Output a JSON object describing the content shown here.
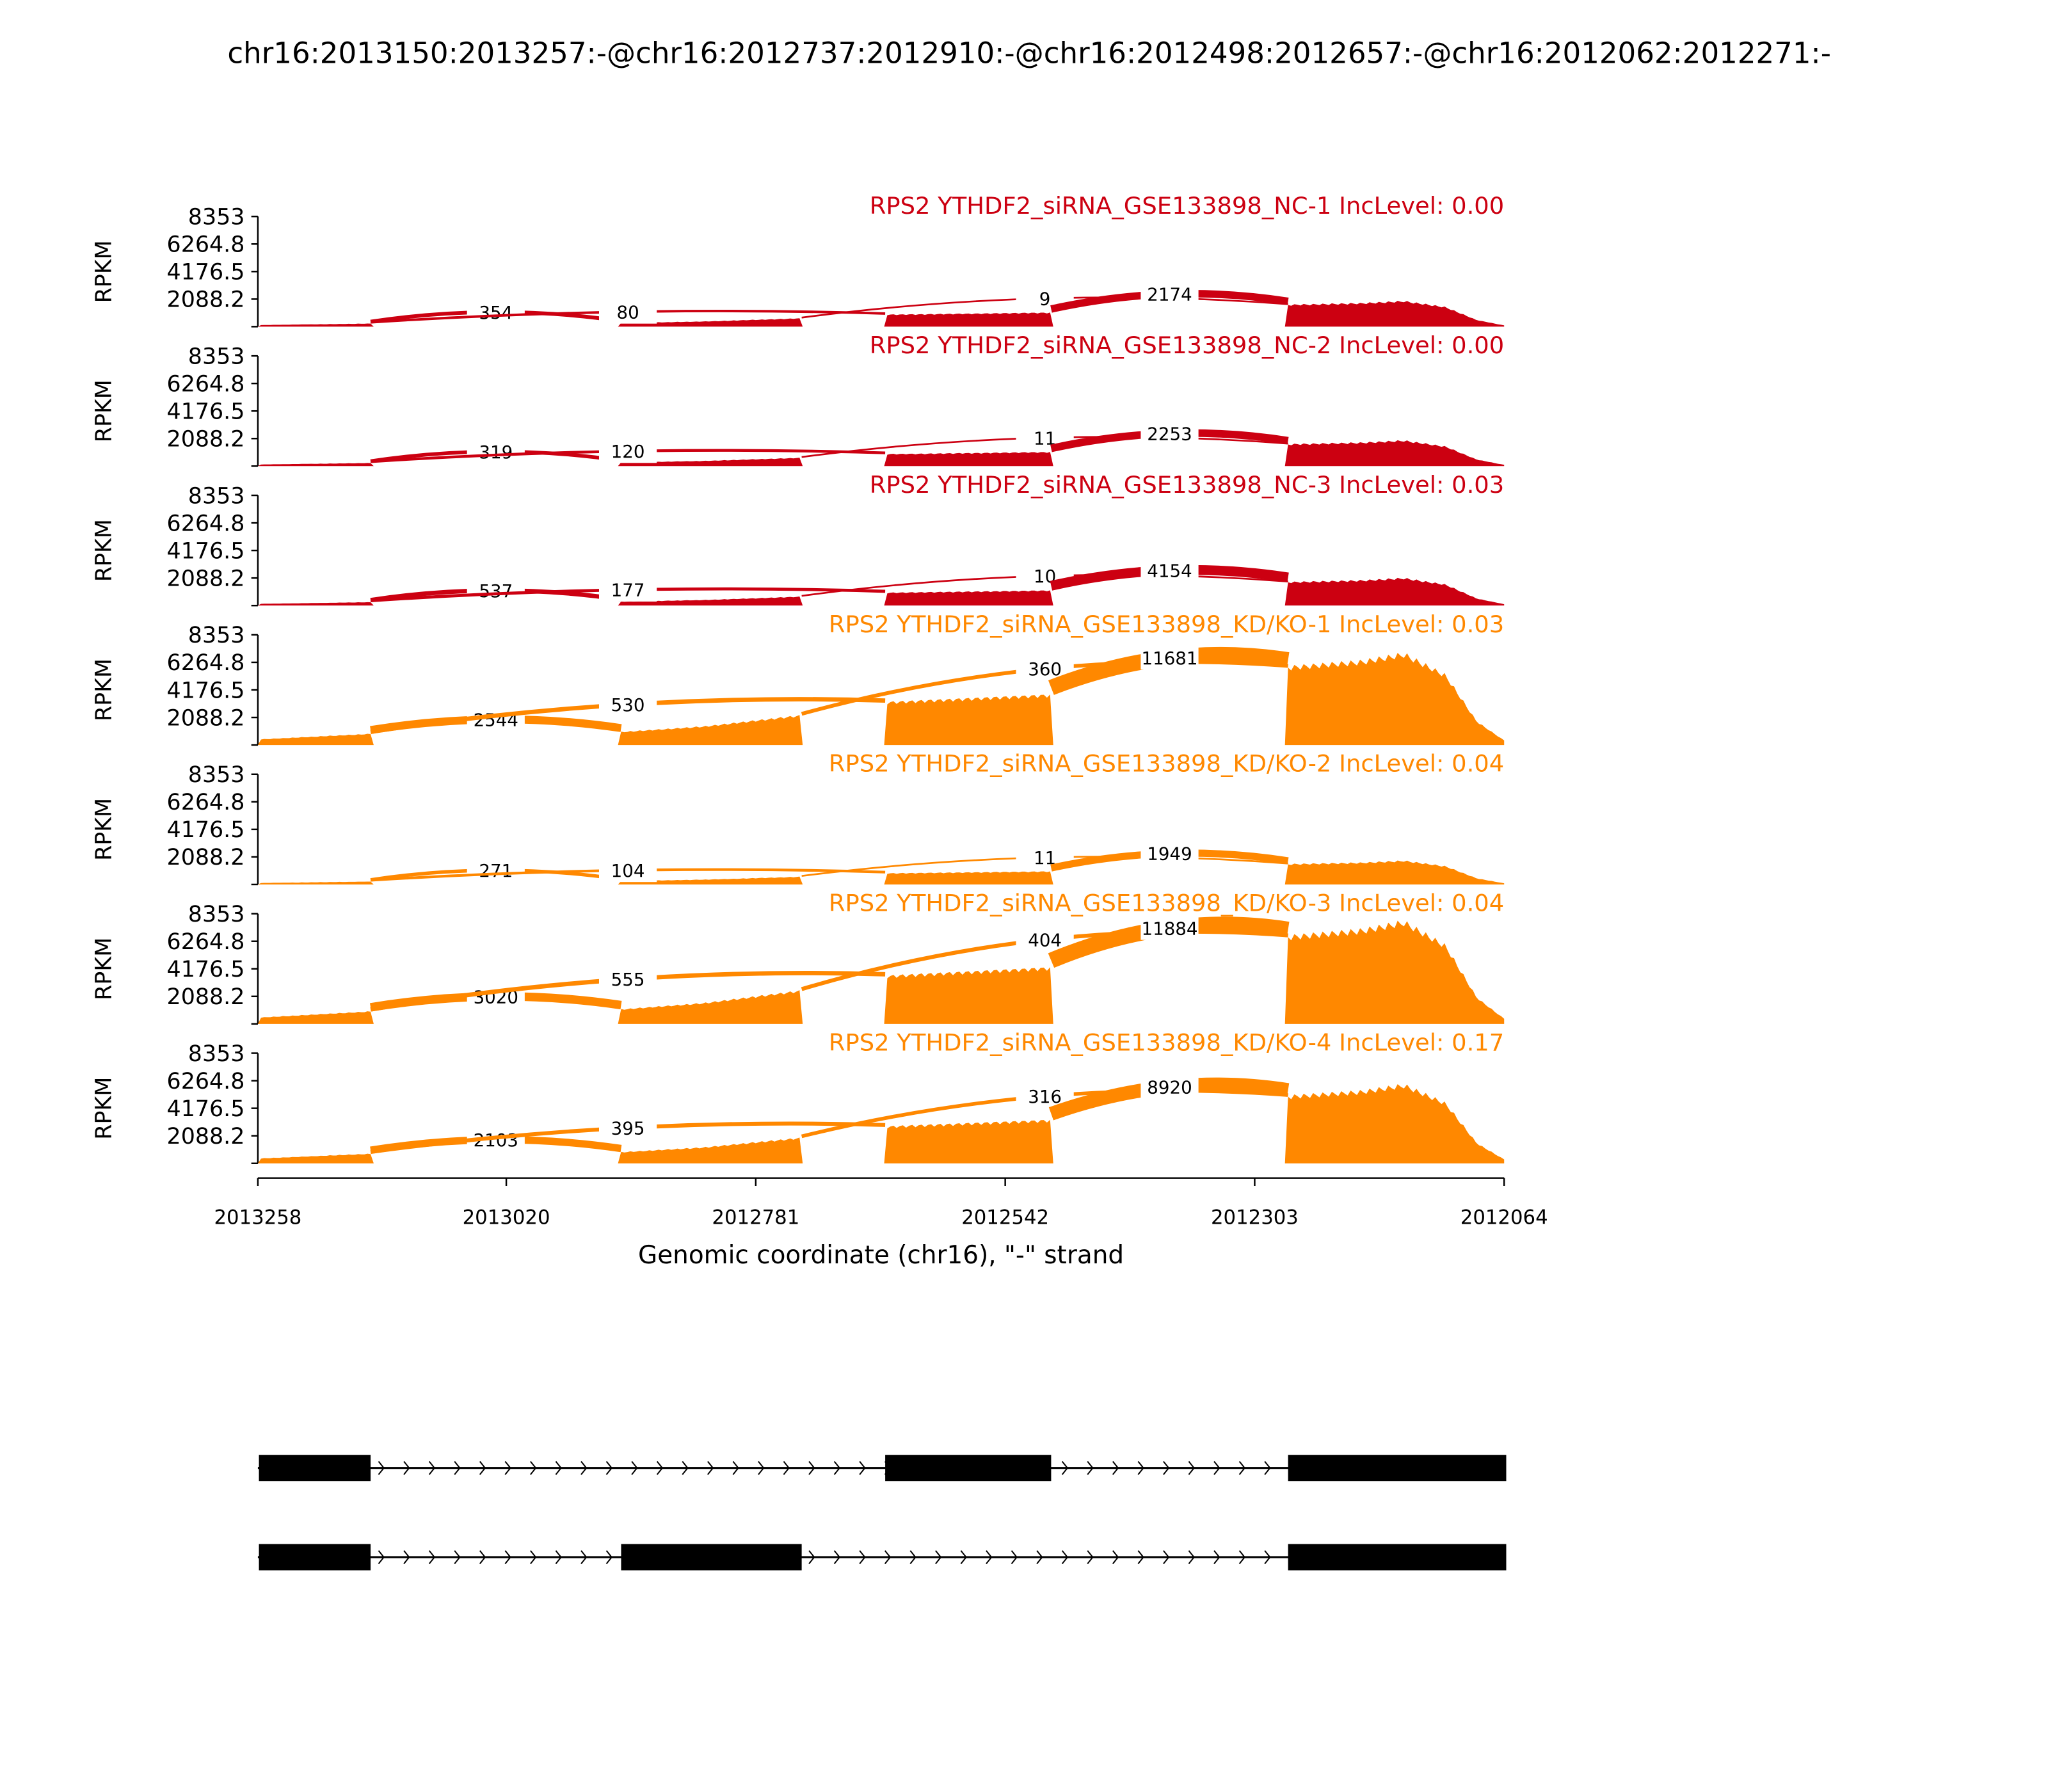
{
  "title": "chr16:2013150:2013257:-@chr16:2012737:2012910:-@chr16:2012498:2012657:-@chr16:2012062:2012271:-",
  "chart_data": {
    "type": "area",
    "subtype": "sashimi",
    "xlabel": "Genomic coordinate (chr16), \"-\" strand",
    "ylabel": "RPKM",
    "xlim": [
      2013258,
      2012064
    ],
    "xticks": [
      "2013258",
      "2013020",
      "2012781",
      "2012542",
      "2012303",
      "2012064"
    ],
    "xtick_values": [
      2013258,
      2013020,
      2012781,
      2012542,
      2012303,
      2012064
    ],
    "ylim": [
      0,
      8353
    ],
    "yticks": [
      "2088.2",
      "4176.5",
      "6264.8",
      "8353"
    ],
    "ytick_values": [
      2088.2,
      4176.5,
      6264.8,
      8353
    ],
    "exons": [
      [
        2013150,
        2013257
      ],
      [
        2012737,
        2012910
      ],
      [
        2012498,
        2012657
      ],
      [
        2012062,
        2012271
      ]
    ],
    "junctions": [
      {
        "from": 2013150,
        "to": 2012910
      },
      {
        "from": 2013150,
        "to": 2012657
      },
      {
        "from": 2012737,
        "to": 2012271
      },
      {
        "from": 2012498,
        "to": 2012271
      }
    ],
    "coverage_shape": [
      [
        2013258,
        0.06
      ],
      [
        2013150,
        0.12
      ],
      [
        2012910,
        0.14
      ],
      [
        2012830,
        0.2
      ],
      [
        2012737,
        0.32
      ],
      [
        2012657,
        0.46
      ],
      [
        2012498,
        0.54
      ],
      [
        2012271,
        0.84
      ],
      [
        2012200,
        0.9
      ],
      [
        2012160,
        0.98
      ],
      [
        2012120,
        0.75
      ],
      [
        2012090,
        0.25
      ],
      [
        2012064,
        0.05
      ]
    ],
    "series": [
      {
        "name": "RPS2 YTHDF2_siRNA_GSE133898_NC-1 IncLevel: 0.00",
        "color": "#CC0011",
        "peak_rpkm": 1950,
        "junction_counts": [
          "354",
          "80",
          "9",
          "2174"
        ]
      },
      {
        "name": "RPS2 YTHDF2_siRNA_GSE133898_NC-2 IncLevel: 0.00",
        "color": "#CC0011",
        "peak_rpkm": 1950,
        "junction_counts": [
          "319",
          "120",
          "11",
          "2253"
        ]
      },
      {
        "name": "RPS2 YTHDF2_siRNA_GSE133898_NC-3 IncLevel: 0.03",
        "color": "#CC0011",
        "peak_rpkm": 2090,
        "junction_counts": [
          "537",
          "177",
          "10",
          "4154"
        ]
      },
      {
        "name": "RPS2 YTHDF2_siRNA_GSE133898_KD/KO-1 IncLevel: 0.03",
        "color": "#FF8800",
        "peak_rpkm": 6960,
        "junction_counts": [
          "2544",
          "530",
          "360",
          "11681"
        ]
      },
      {
        "name": "RPS2 YTHDF2_siRNA_GSE133898_KD/KO-2 IncLevel: 0.04",
        "color": "#FF8800",
        "peak_rpkm": 1810,
        "junction_counts": [
          "271",
          "104",
          "11",
          "1949"
        ]
      },
      {
        "name": "RPS2 YTHDF2_siRNA_GSE133898_KD/KO-3 IncLevel: 0.04",
        "color": "#FF8800",
        "peak_rpkm": 7800,
        "junction_counts": [
          "3020",
          "555",
          "404",
          "11884"
        ]
      },
      {
        "name": "RPS2 YTHDF2_siRNA_GSE133898_KD/KO-4 IncLevel: 0.17",
        "color": "#FF8800",
        "peak_rpkm": 5990,
        "junction_counts": [
          "2103",
          "395",
          "316",
          "8920"
        ]
      }
    ],
    "transcripts": [
      {
        "exons": [
          [
            2013150,
            2013257
          ],
          [
            2012498,
            2012657
          ],
          [
            2012062,
            2012271
          ]
        ]
      },
      {
        "exons": [
          [
            2013150,
            2013257
          ],
          [
            2012737,
            2012910
          ],
          [
            2012062,
            2012271
          ]
        ]
      }
    ]
  }
}
